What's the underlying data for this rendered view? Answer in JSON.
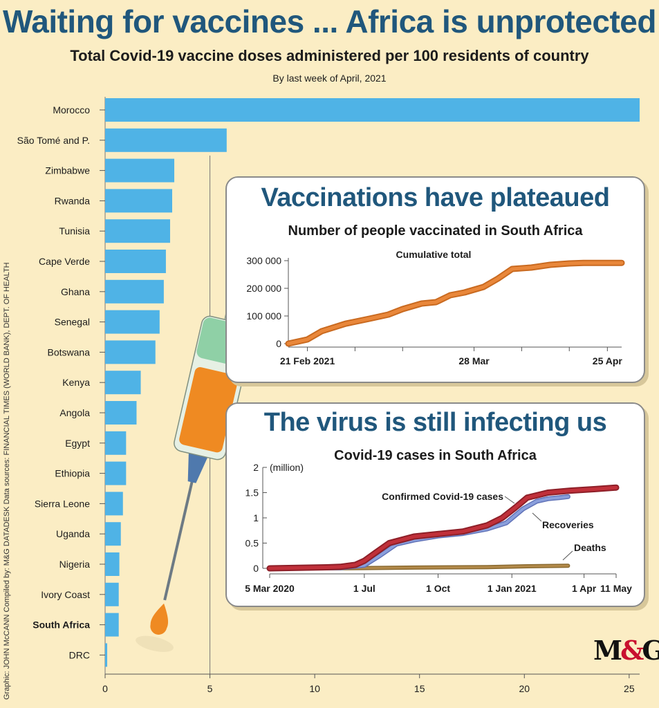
{
  "title": "Waiting for vaccines ... Africa is unprotected",
  "subtitle": "Total Covid-19 vaccine doses administered per 100 residents of country",
  "date_note": "By last week of April, 2021",
  "credit": "Graphic: JOHN McCANN  Compiled by: M&G DATADESK  Data sources: FINANCIAL TIMES (WORLD BANK), DEPT. OF HEALTH",
  "logo": {
    "left": "M",
    "amp": "&",
    "right": "G"
  },
  "colors": {
    "bar": "#4fb3e6",
    "title": "#20577c",
    "vaccinated_line": "#e9873a",
    "cases_line": "#c0303a",
    "recoveries_line": "#8a9fdc",
    "deaths_line": "#b38a4a",
    "background": "#fbedc4"
  },
  "icons": [
    "syringe-illustration"
  ],
  "chart_data": [
    {
      "type": "bar",
      "orientation": "horizontal",
      "categories": [
        "Morocco",
        "São Tomé and P.",
        "Zimbabwe",
        "Rwanda",
        "Tunisia",
        "Cape Verde",
        "Ghana",
        "Senegal",
        "Botswana",
        "Kenya",
        "Angola",
        "Egypt",
        "Ethiopia",
        "Sierra Leone",
        "Uganda",
        "Nigeria",
        "Ivory Coast",
        "South Africa",
        "DRC"
      ],
      "highlight": "South Africa",
      "values": [
        25.5,
        5.8,
        3.3,
        3.2,
        3.1,
        2.9,
        2.8,
        2.6,
        2.4,
        1.7,
        1.5,
        1.0,
        1.0,
        0.85,
        0.75,
        0.68,
        0.65,
        0.65,
        0.1
      ],
      "xlim": [
        0,
        25.5
      ],
      "xticks": [
        0,
        5,
        10,
        15,
        20,
        25
      ],
      "xtick_labels": [
        "0",
        "5",
        "10",
        "15",
        "20",
        "25"
      ],
      "reference_line": 5
    },
    {
      "type": "line",
      "title": "Vaccinations have plateaued",
      "subtitle": "Number of people vaccinated in South Africa",
      "series": [
        {
          "name": "Cumulative total",
          "x": [
            "2021-02-17",
            "2021-02-21",
            "2021-02-24",
            "2021-03-01",
            "2021-03-06",
            "2021-03-10",
            "2021-03-13",
            "2021-03-17",
            "2021-03-20",
            "2021-03-23",
            "2021-03-26",
            "2021-03-30",
            "2021-04-02",
            "2021-04-05",
            "2021-04-09",
            "2021-04-13",
            "2021-04-17",
            "2021-04-20",
            "2021-04-25",
            "2021-04-28"
          ],
          "values": [
            0,
            15000,
            45000,
            72000,
            90000,
            105000,
            125000,
            145000,
            150000,
            175000,
            185000,
            205000,
            235000,
            270000,
            275000,
            285000,
            290000,
            292000,
            292000,
            292000
          ]
        }
      ],
      "ylim": [
        0,
        300000
      ],
      "yticks": [
        0,
        100000,
        200000,
        300000
      ],
      "ytick_labels": [
        "0",
        "100 000",
        "200 000",
        "300 000"
      ],
      "xlim": [
        "2021-02-17",
        "2021-04-28"
      ],
      "xticks": [
        "2021-02-21",
        "2021-03-03",
        "2021-03-13",
        "2021-03-28",
        "2021-04-07",
        "2021-04-17",
        "2021-04-25"
      ],
      "xtick_labels": [
        "21 Feb 2021",
        "",
        "",
        "28 Mar",
        "",
        "",
        "25 Apr"
      ]
    },
    {
      "type": "line",
      "title": "The virus is still infecting us",
      "subtitle": "Covid-19 cases in South Africa",
      "unit_label": "(million)",
      "series": [
        {
          "name": "Confirmed Covid-19 cases",
          "x": [
            "2020-03-05",
            "2020-05-15",
            "2020-06-01",
            "2020-06-20",
            "2020-07-01",
            "2020-07-15",
            "2020-08-01",
            "2020-09-01",
            "2020-10-01",
            "2020-11-01",
            "2020-12-01",
            "2020-12-20",
            "2021-01-05",
            "2021-01-20",
            "2021-02-15",
            "2021-03-15",
            "2021-04-15",
            "2021-05-11"
          ],
          "values": [
            0.0,
            0.02,
            0.03,
            0.07,
            0.15,
            0.31,
            0.5,
            0.63,
            0.68,
            0.73,
            0.85,
            1.0,
            1.2,
            1.4,
            1.5,
            1.54,
            1.57,
            1.6
          ]
        },
        {
          "name": "Recoveries",
          "x": [
            "2020-03-05",
            "2020-06-01",
            "2020-07-01",
            "2020-07-20",
            "2020-08-10",
            "2020-09-01",
            "2020-10-01",
            "2020-11-01",
            "2020-12-01",
            "2020-12-25",
            "2021-01-15",
            "2021-02-01",
            "2021-02-15",
            "2021-03-01",
            "2021-03-12"
          ],
          "values": [
            0.0,
            0.01,
            0.06,
            0.25,
            0.48,
            0.56,
            0.64,
            0.69,
            0.78,
            0.9,
            1.18,
            1.33,
            1.38,
            1.4,
            1.42
          ]
        },
        {
          "name": "Deaths",
          "x": [
            "2020-03-05",
            "2020-06-01",
            "2020-07-01",
            "2020-09-01",
            "2020-12-01",
            "2021-01-15",
            "2021-03-12"
          ],
          "values": [
            0.0,
            0.001,
            0.005,
            0.015,
            0.025,
            0.04,
            0.05
          ]
        }
      ],
      "ylim": [
        0,
        2
      ],
      "yticks": [
        0,
        0.5,
        1,
        1.5,
        2
      ],
      "ytick_labels": [
        "0",
        "0.5",
        "1",
        "1.5",
        "2"
      ],
      "xlim": [
        "2020-03-05",
        "2021-05-11"
      ],
      "xticks": [
        "2020-03-05",
        "2020-07-01",
        "2020-10-01",
        "2021-01-01",
        "2021-04-01",
        "2021-05-11"
      ],
      "xtick_labels": [
        "5 Mar 2020",
        "1 Jul",
        "1 Oct",
        "1 Jan 2021",
        "1 Apr",
        "11 May"
      ]
    }
  ]
}
